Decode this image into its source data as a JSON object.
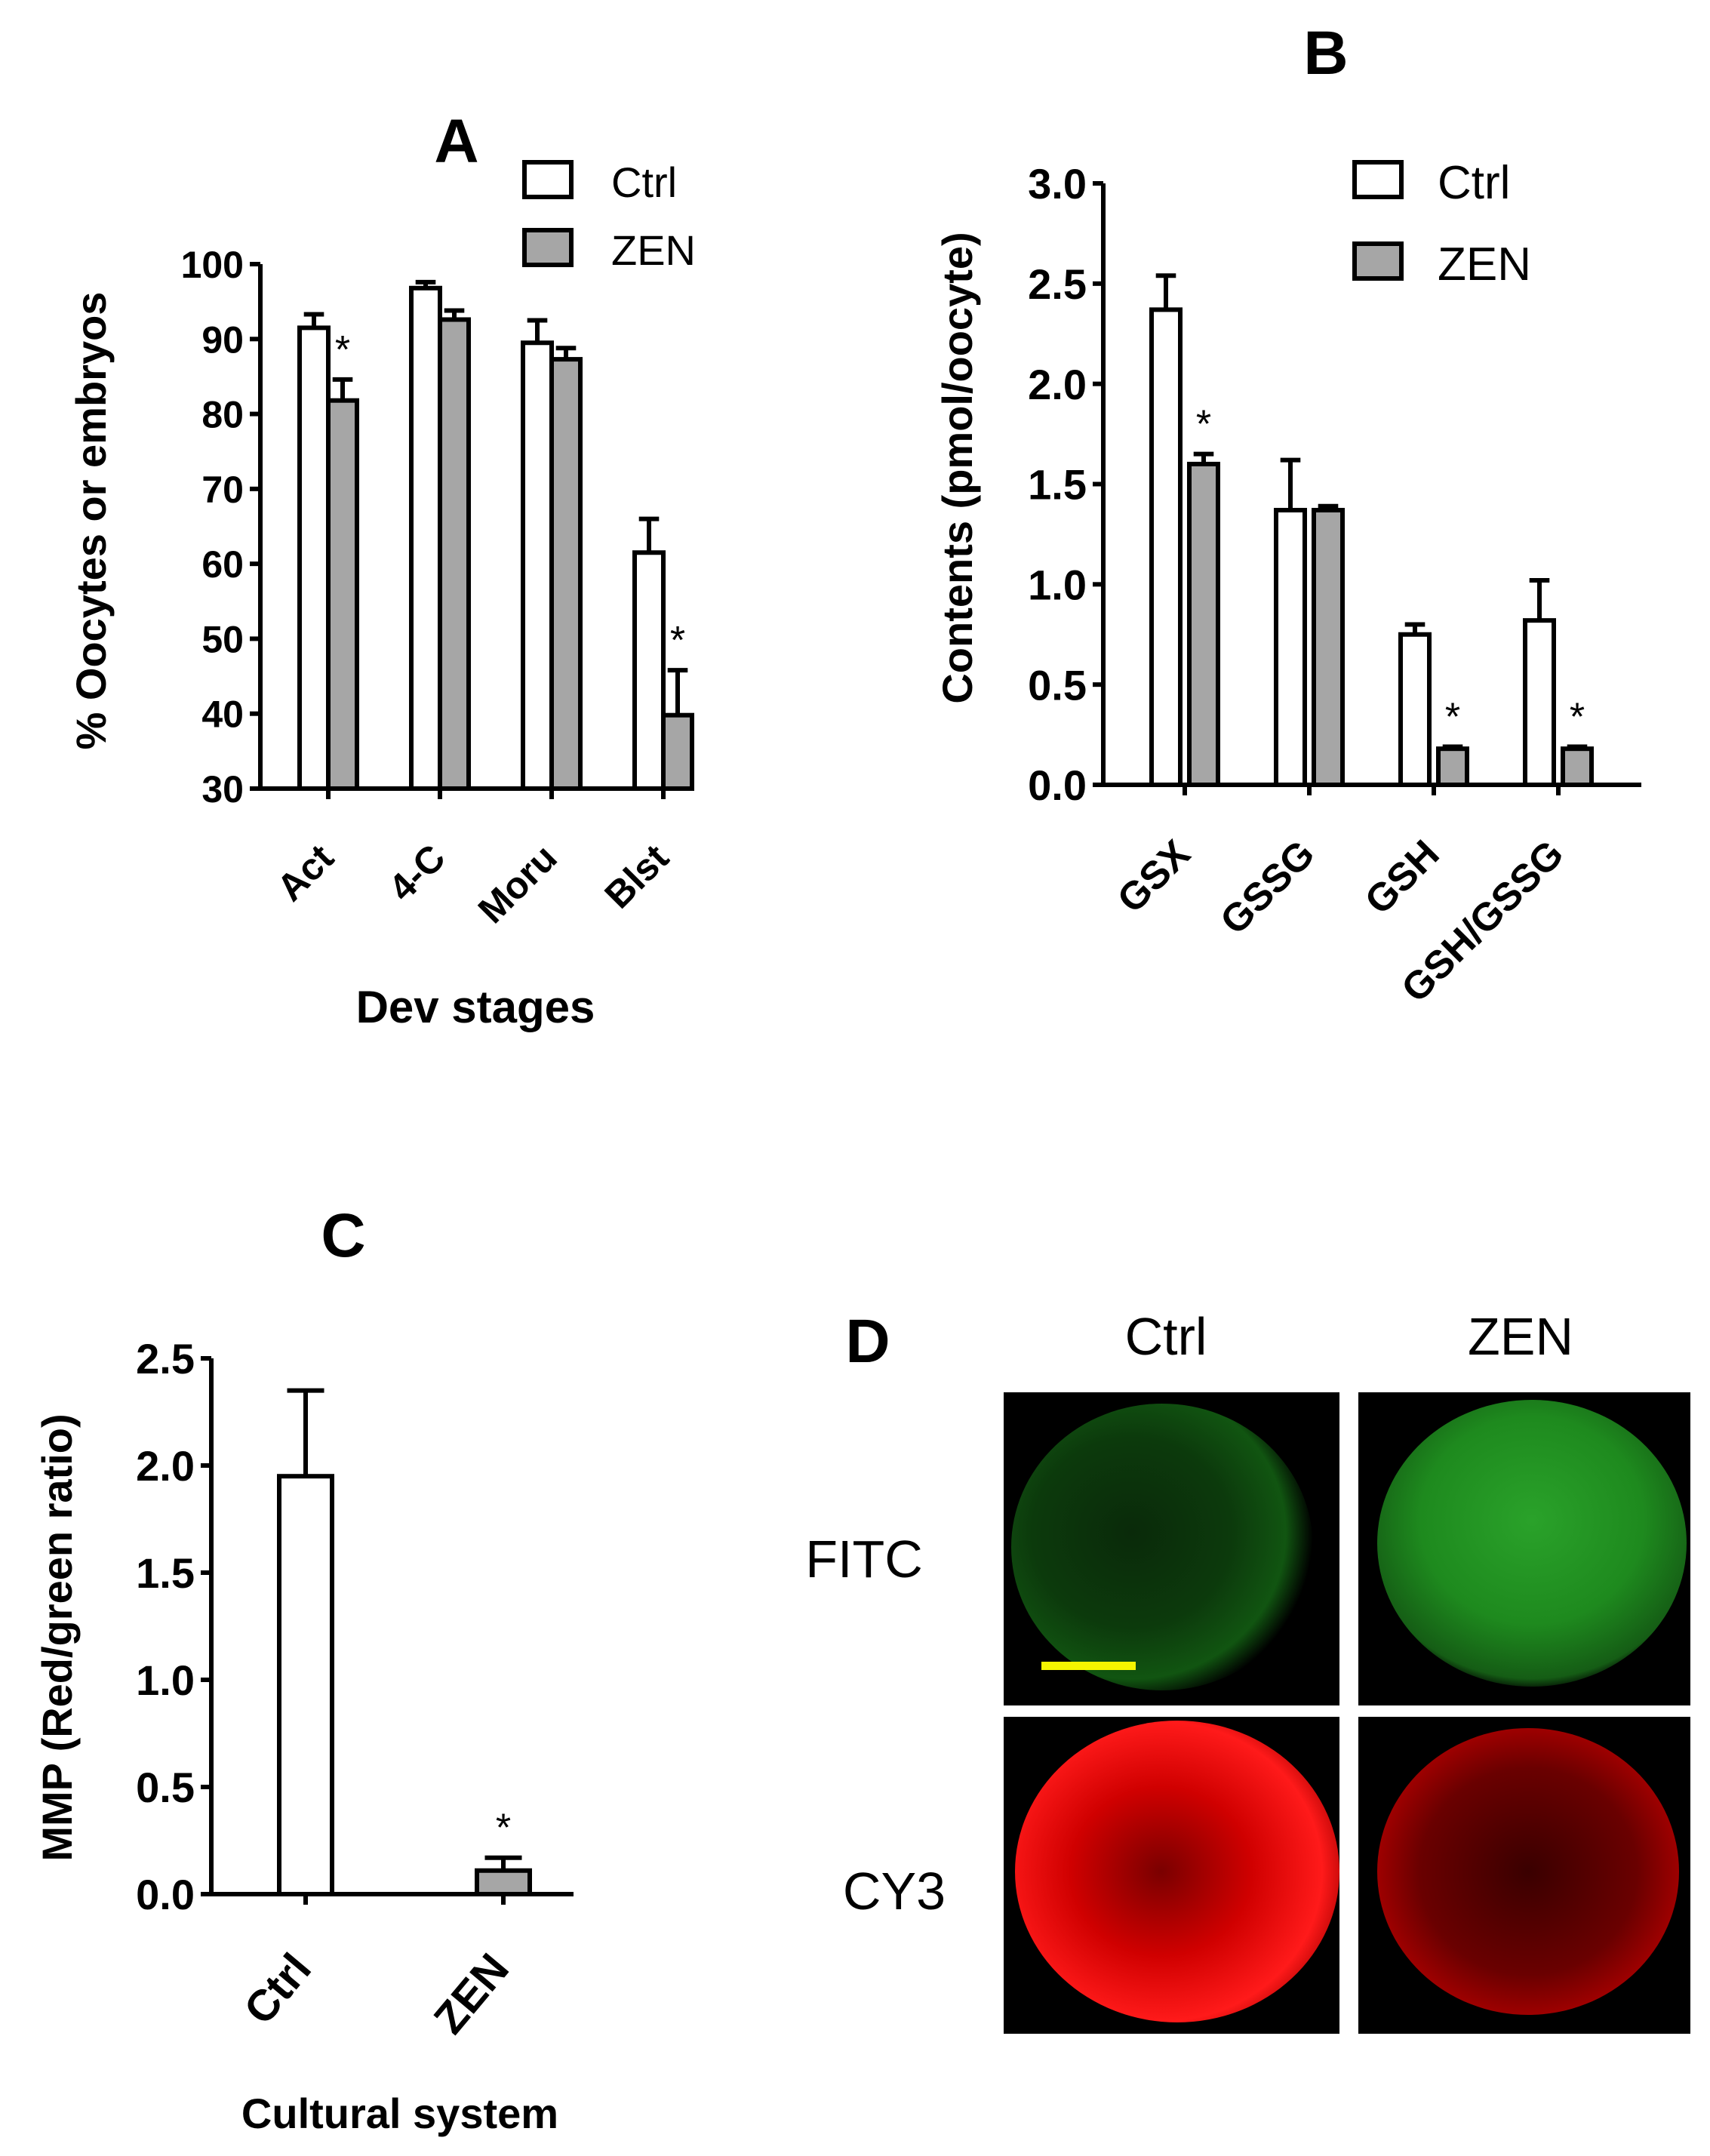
{
  "colors": {
    "ctrl": "#ffffff",
    "zen": "#a6a6a6",
    "axis": "#000000",
    "scale_bar": "#f5f500"
  },
  "chart_data": [
    {
      "panel": "A",
      "type": "bar",
      "title": "A",
      "xlabel": "Dev stages",
      "ylabel": "% Oocytes or embryos",
      "ylim": [
        30,
        100
      ],
      "yticks": [
        "30",
        "40",
        "50",
        "60",
        "70",
        "80",
        "90",
        "100"
      ],
      "categories": [
        "Act",
        "4-C",
        "Moru",
        "Blst"
      ],
      "series": [
        {
          "name": "Ctrl",
          "values": [
            91.5,
            96.8,
            89.5,
            61.5
          ],
          "errors": [
            1.8,
            0.8,
            3.0,
            4.5
          ]
        },
        {
          "name": "ZEN",
          "values": [
            81.8,
            92.6,
            87.3,
            39.8
          ],
          "errors": [
            2.8,
            1.2,
            1.5,
            6.0
          ]
        }
      ],
      "significance": [
        {
          "category": "Act",
          "series": "ZEN",
          "mark": "*"
        },
        {
          "category": "Blst",
          "series": "ZEN",
          "mark": "*"
        }
      ],
      "legend": "top-right"
    },
    {
      "panel": "B",
      "type": "bar",
      "title": "B",
      "xlabel": "",
      "ylabel": "Contents (pmol/oocyte)",
      "ylim": [
        0,
        3.0
      ],
      "yticks": [
        "0.0",
        "0.5",
        "1.0",
        "1.5",
        "2.0",
        "2.5",
        "3.0"
      ],
      "categories": [
        "GSX",
        "GSSG",
        "GSH",
        "GSH/GSSG"
      ],
      "series": [
        {
          "name": "Ctrl",
          "values": [
            2.37,
            1.37,
            0.75,
            0.82
          ],
          "errors": [
            0.17,
            0.25,
            0.05,
            0.2
          ]
        },
        {
          "name": "ZEN",
          "values": [
            1.6,
            1.37,
            0.18,
            0.18
          ],
          "errors": [
            0.05,
            0.02,
            0.01,
            0.01
          ]
        }
      ],
      "significance": [
        {
          "category": "GSX",
          "series": "ZEN",
          "mark": "*"
        },
        {
          "category": "GSH",
          "series": "ZEN",
          "mark": "*"
        },
        {
          "category": "GSH/GSSG",
          "series": "ZEN",
          "mark": "*"
        }
      ],
      "legend": "top-right"
    },
    {
      "panel": "C",
      "type": "bar",
      "title": "C",
      "xlabel": "Cultural system",
      "ylabel": "MMP (Red/green ratio)",
      "ylim": [
        0,
        2.5
      ],
      "yticks": [
        "0.0",
        "0.5",
        "1.0",
        "1.5",
        "2.0",
        "2.5"
      ],
      "categories": [
        "Ctrl",
        "ZEN"
      ],
      "series": [
        {
          "values": [
            1.95,
            0.11
          ],
          "errors": [
            0.4,
            0.06
          ]
        }
      ],
      "significance": [
        {
          "category": "ZEN",
          "mark": "*"
        }
      ]
    }
  ],
  "panel_d": {
    "title": "D",
    "columns": [
      "Ctrl",
      "ZEN"
    ],
    "rows": [
      "FITC",
      "CY3"
    ]
  }
}
